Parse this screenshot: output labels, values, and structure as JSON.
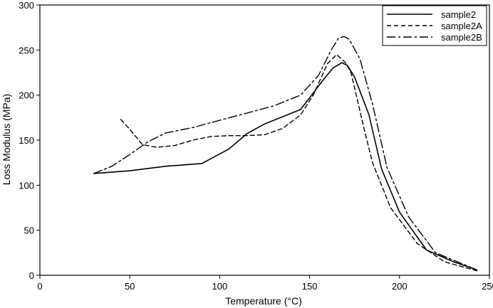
{
  "chart_data": {
    "type": "line",
    "title": "",
    "xlabel": "Temperature (°C)",
    "ylabel": "Loss Modulus (MPa)",
    "xlim": [
      0,
      250
    ],
    "ylim": [
      0,
      300
    ],
    "xticks": [
      0,
      50,
      100,
      150,
      200,
      250
    ],
    "yticks": [
      0,
      50,
      100,
      150,
      200,
      250,
      300
    ],
    "grid": false,
    "legend_position": "top-right",
    "series": [
      {
        "name": "sample2",
        "style": "solid",
        "color": "#000000",
        "x": [
          30,
          50,
          70,
          90,
          105,
          115,
          125,
          135,
          145,
          150,
          158,
          163,
          168,
          171,
          175,
          183,
          190,
          200,
          215,
          230,
          243
        ],
        "y": [
          113,
          116,
          121,
          124,
          140,
          157,
          168,
          176,
          184,
          197,
          218,
          230,
          236,
          233,
          220,
          178,
          118,
          70,
          28,
          15,
          6
        ]
      },
      {
        "name": "sample2A",
        "style": "dashed",
        "color": "#000000",
        "x": [
          45,
          50,
          57,
          65,
          75,
          85,
          95,
          105,
          115,
          125,
          135,
          145,
          152,
          160,
          165,
          170,
          173,
          180,
          185,
          195,
          210,
          225,
          243
        ],
        "y": [
          173,
          162,
          145,
          142,
          144,
          150,
          154,
          155,
          155,
          156,
          163,
          178,
          200,
          235,
          245,
          236,
          225,
          165,
          125,
          75,
          35,
          15,
          5
        ]
      },
      {
        "name": "sample2B",
        "style": "dashdot",
        "color": "#000000",
        "x": [
          30,
          40,
          50,
          60,
          70,
          85,
          100,
          115,
          130,
          145,
          155,
          162,
          166,
          169,
          172,
          178,
          185,
          193,
          205,
          220,
          243
        ],
        "y": [
          113,
          121,
          134,
          148,
          158,
          164,
          172,
          180,
          188,
          200,
          222,
          250,
          263,
          265,
          262,
          240,
          190,
          120,
          65,
          25,
          6
        ]
      }
    ]
  }
}
